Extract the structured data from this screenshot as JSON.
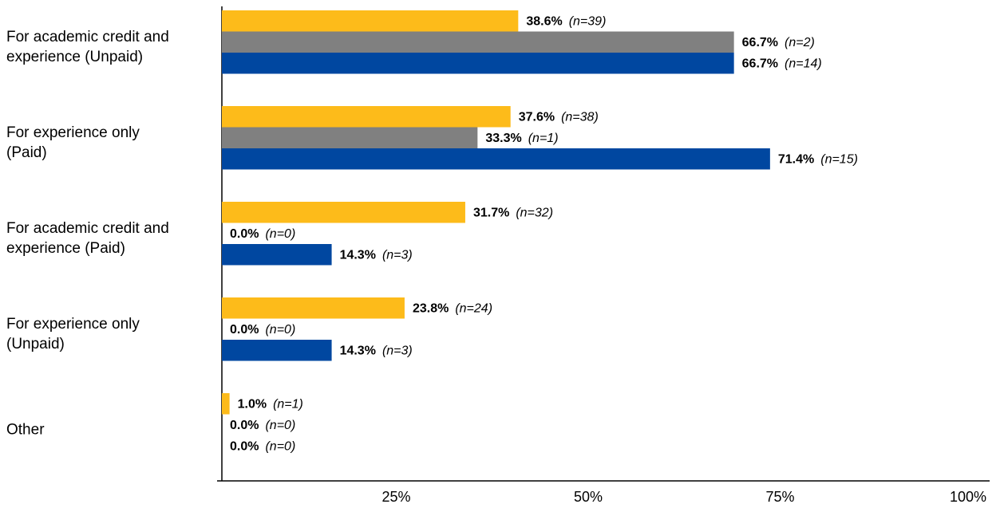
{
  "chart_data": {
    "type": "barh",
    "categories": [
      "For academic credit and\nexperience (Unpaid)",
      "For experience only\n(Paid)",
      "For academic credit and\nexperience (Paid)",
      "For experience only\n(Unpaid)",
      "Other"
    ],
    "series": [
      {
        "color": "#fdbb1a",
        "values": [
          38.6,
          37.6,
          31.7,
          23.8,
          1.0
        ],
        "value_labels": [
          "38.6%",
          "37.6%",
          "31.7%",
          "23.8%",
          "1.0%"
        ],
        "n_labels": [
          "(n=39)",
          "(n=38)",
          "(n=32)",
          "(n=24)",
          "(n=1)"
        ]
      },
      {
        "color": "#808080",
        "values": [
          66.7,
          33.3,
          0.0,
          0.0,
          0.0
        ],
        "value_labels": [
          "66.7%",
          "33.3%",
          "0.0%",
          "0.0%",
          "0.0%"
        ],
        "n_labels": [
          "(n=2)",
          "(n=1)",
          "(n=0)",
          "(n=0)",
          "(n=0)"
        ]
      },
      {
        "color": "#0047a0",
        "values": [
          66.7,
          71.4,
          14.3,
          14.3,
          0.0
        ],
        "value_labels": [
          "66.7%",
          "71.4%",
          "14.3%",
          "14.3%",
          "0.0%"
        ],
        "n_labels": [
          "(n=14)",
          "(n=15)",
          "(n=3)",
          "(n=3)",
          "(n=0)"
        ]
      }
    ],
    "xlim": [
      0,
      100
    ],
    "xticks": [
      {
        "value": 25,
        "label": "25%"
      },
      {
        "value": 50,
        "label": "50%"
      },
      {
        "value": 75,
        "label": "75%"
      },
      {
        "value": 100,
        "label": "100%"
      }
    ]
  }
}
